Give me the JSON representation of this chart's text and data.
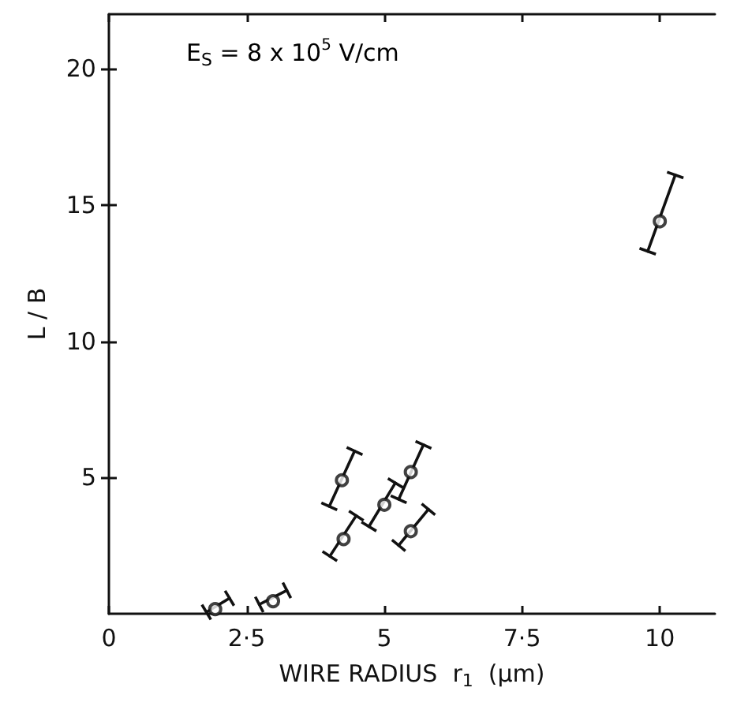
{
  "chart_data": {
    "type": "scatter",
    "xlabel": "WIRE RADIUS  r$_{1}$  (μm)",
    "ylabel": "L / B",
    "annotations": [
      "E$_{S}$ = 8 x 10$^{5}$ V/cm"
    ],
    "series": [
      {
        "color": "#111111",
        "x": [
          1.93,
          2.98,
          4.23,
          4.26,
          5.0,
          5.48,
          5.48,
          10.0
        ],
        "values": [
          0.17,
          0.46,
          4.9,
          2.74,
          4.0,
          5.2,
          3.03,
          14.4
        ]
      },
      {
        "type": "line",
        "marker": "cross",
        "color": "#111111",
        "x": [
          1.77,
          2.19
        ],
        "values": [
          0.06,
          0.57
        ]
      },
      {
        "type": "line",
        "marker": "cross",
        "color": "#111111",
        "x": [
          2.73,
          3.23
        ],
        "values": [
          0.34,
          0.86
        ]
      },
      {
        "type": "line",
        "marker": "cross",
        "color": "#111111",
        "x": [
          4.0,
          4.46
        ],
        "values": [
          3.94,
          5.97
        ]
      },
      {
        "type": "line",
        "marker": "cross",
        "color": "#111111",
        "x": [
          4.01,
          4.49
        ],
        "values": [
          2.11,
          3.6
        ]
      },
      {
        "type": "line",
        "marker": "cross",
        "color": "#111111",
        "x": [
          4.72,
          5.2
        ],
        "values": [
          3.2,
          4.8
        ]
      },
      {
        "type": "line",
        "marker": "cross",
        "color": "#111111",
        "x": [
          5.26,
          5.71
        ],
        "values": [
          4.2,
          6.2
        ]
      },
      {
        "type": "line",
        "marker": "cross",
        "color": "#111111",
        "x": [
          5.26,
          5.8
        ],
        "values": [
          2.51,
          3.83
        ]
      },
      {
        "type": "line",
        "marker": "cross",
        "color": "#111111",
        "x": [
          9.78,
          10.28
        ],
        "values": [
          13.3,
          16.1
        ]
      }
    ],
    "marker": "circle",
    "line_style": "solid",
    "grid": false,
    "xlim": [
      0,
      11
    ],
    "xticks": [
      0,
      {
        "value": 2.5,
        "label": "2·5"
      },
      5,
      {
        "value": 7.5,
        "label": "7·5"
      },
      10
    ],
    "ylim": [
      0,
      22
    ],
    "yticks": [
      5,
      10,
      15,
      20
    ]
  }
}
